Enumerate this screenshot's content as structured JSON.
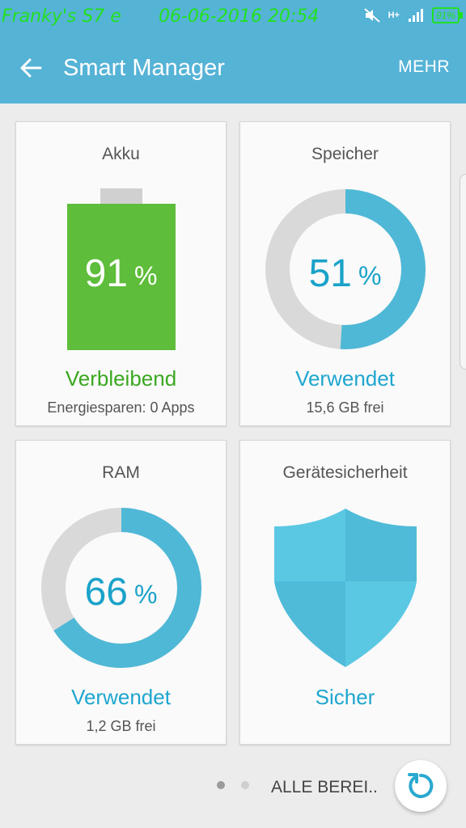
{
  "status_bar": {
    "device_name": "Franky's S7 e",
    "datetime": "06-06-2016 20:54",
    "battery_label": "91%",
    "network_label": "H+"
  },
  "appbar": {
    "title": "Smart Manager",
    "more_label": "MEHR"
  },
  "cards": {
    "akku": {
      "title": "Akku",
      "value": "91",
      "unit": "%",
      "status": "Verbleibend",
      "sub": "Energiesparen: 0 Apps",
      "level": 0.91
    },
    "speicher": {
      "title": "Speicher",
      "value": "51",
      "unit": "%",
      "status": "Verwendet",
      "sub": "15,6 GB frei",
      "used_fraction": 0.51
    },
    "ram": {
      "title": "RAM",
      "value": "66",
      "unit": "%",
      "status": "Verwendet",
      "sub": "1,2 GB frei",
      "used_fraction": 0.66
    },
    "security": {
      "title": "Gerätesicherheit",
      "status": "Sicher"
    }
  },
  "footer": {
    "all_areas_label": "ALLE BEREI..",
    "page_count": 2,
    "current_page": 1
  },
  "colors": {
    "accent": "#55b3d6",
    "ring_blue": "#4fb8d6",
    "ring_gray": "#d9d9d9",
    "battery_green": "#5ebd3a",
    "status_green": "#3aa820",
    "status_blue": "#1ea6cf",
    "number_blue": "#1aa2c9",
    "statusbar_text": "#22e022"
  }
}
